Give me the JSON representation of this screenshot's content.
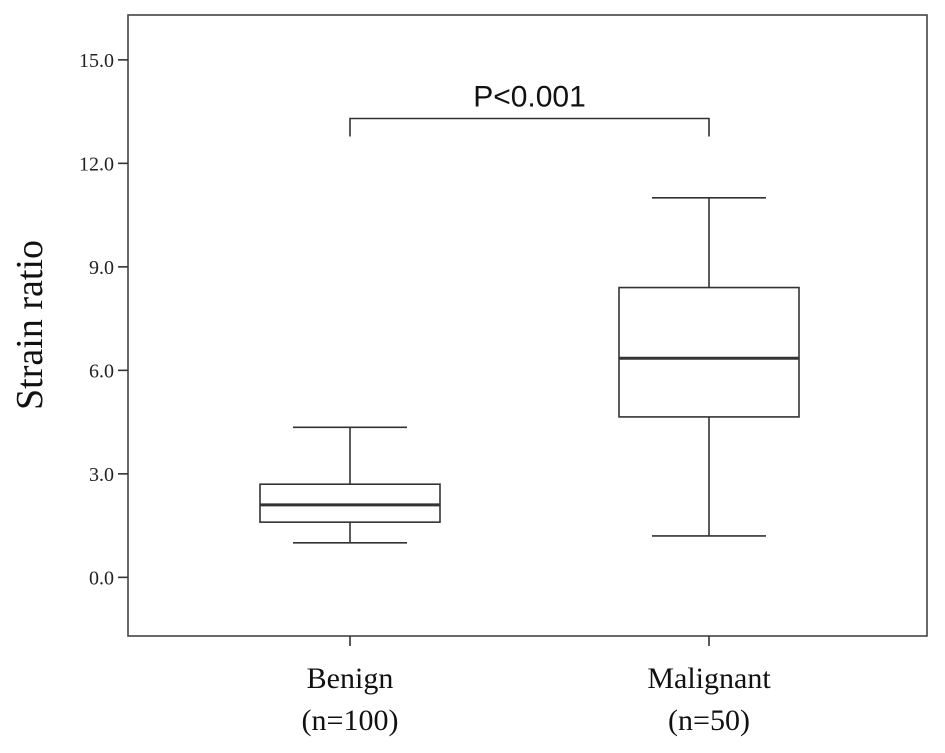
{
  "chart_data": {
    "type": "boxplot",
    "title": "",
    "xlabel": "",
    "ylabel": "Strain ratio",
    "ylim": [
      -1.7,
      16.3
    ],
    "yticks": [
      0.0,
      3.0,
      6.0,
      9.0,
      12.0,
      15.0
    ],
    "ytick_labels": [
      "0.0",
      "3.0",
      "6.0",
      "9.0",
      "12.0",
      "15.0"
    ],
    "grid": false,
    "groups": [
      {
        "name": "Benign",
        "n_label": "(n=100)",
        "min": 1.0,
        "q1": 1.6,
        "median": 2.1,
        "q3": 2.7,
        "max": 4.35
      },
      {
        "name": "Malignant",
        "n_label": "(n=50)",
        "min": 1.2,
        "q1": 4.65,
        "median": 6.35,
        "q3": 8.4,
        "max": 11.0
      }
    ],
    "annotation": {
      "text": "P<0.001",
      "y": 13.3
    }
  }
}
